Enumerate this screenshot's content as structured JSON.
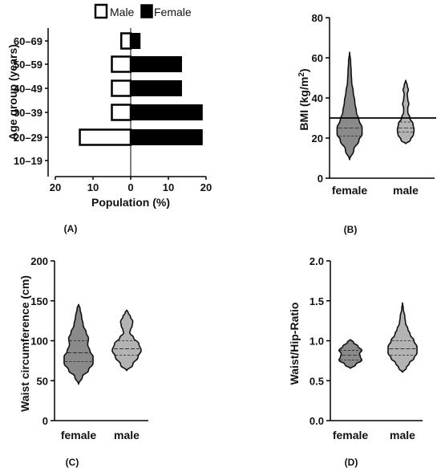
{
  "chart_data": [
    {
      "panel_label": "(A)",
      "type": "bar",
      "orientation": "horizontal-population-pyramid",
      "xlabel": "Population (%)",
      "ylabel": "Age group (years)",
      "xlim": [
        -20,
        20
      ],
      "x_ticks": [
        "20",
        "10",
        "0",
        "10",
        "20"
      ],
      "categories": [
        "60–69",
        "50–59",
        "40–49",
        "30–39",
        "20–29",
        "10–19"
      ],
      "series": [
        {
          "name": "Male",
          "values": [
            2.5,
            5,
            5,
            5,
            13.5,
            0
          ],
          "color": "#ffffff"
        },
        {
          "name": "Female",
          "values": [
            2.5,
            13.5,
            13.5,
            19,
            19,
            0
          ],
          "color": "#000000"
        }
      ],
      "legend_placement": "top"
    },
    {
      "panel_label": "(B)",
      "type": "violin",
      "ylabel": "BMI (kg/m²)",
      "ylim": [
        0,
        80
      ],
      "y_ticks": [
        "0",
        "20",
        "40",
        "60",
        "80"
      ],
      "categories": [
        "female",
        "male"
      ],
      "reference_line": 30,
      "violins": [
        {
          "min": 9,
          "max": 63,
          "profile": [
            [
              9,
              0
            ],
            [
              14,
              8
            ],
            [
              19,
              18
            ],
            [
              22,
              24
            ],
            [
              25,
              24
            ],
            [
              29,
              18
            ],
            [
              33,
              13
            ],
            [
              38,
              10
            ],
            [
              43,
              7
            ],
            [
              48,
              4
            ],
            [
              53,
              3
            ],
            [
              58,
              2
            ],
            [
              63,
              0
            ]
          ],
          "median": 25,
          "q1": 21,
          "q3": 30,
          "color": "#8a8a8a"
        },
        {
          "min": 17,
          "max": 49,
          "profile": [
            [
              17,
              0
            ],
            [
              19,
              9
            ],
            [
              22,
              15
            ],
            [
              24,
              16
            ],
            [
              27,
              14
            ],
            [
              30,
              8
            ],
            [
              33,
              4
            ],
            [
              35,
              4
            ],
            [
              37,
              6
            ],
            [
              39,
              4
            ],
            [
              42,
              3
            ],
            [
              44,
              5
            ],
            [
              46,
              3
            ],
            [
              49,
              0
            ]
          ],
          "median": 25,
          "q1": 23,
          "q3": 28,
          "color": "#b3b3b3"
        }
      ]
    },
    {
      "panel_label": "(C)",
      "type": "violin",
      "ylabel": "Waist circumference (cm)",
      "ylim": [
        0,
        200
      ],
      "y_ticks": [
        "0",
        "50",
        "100",
        "150",
        "200"
      ],
      "categories": [
        "female",
        "male"
      ],
      "violins": [
        {
          "min": 45,
          "max": 146,
          "profile": [
            [
              45,
              0
            ],
            [
              55,
              5
            ],
            [
              63,
              13
            ],
            [
              72,
              19
            ],
            [
              80,
              19
            ],
            [
              87,
              15
            ],
            [
              95,
              12
            ],
            [
              103,
              13
            ],
            [
              110,
              10
            ],
            [
              120,
              6
            ],
            [
              130,
              4
            ],
            [
              140,
              2
            ],
            [
              146,
              0
            ]
          ],
          "median": 85,
          "q1": 74,
          "q3": 100,
          "color": "#8a8a8a"
        },
        {
          "min": 62,
          "max": 139,
          "profile": [
            [
              62,
              0
            ],
            [
              70,
              8
            ],
            [
              80,
              15
            ],
            [
              88,
              19
            ],
            [
              96,
              16
            ],
            [
              104,
              9
            ],
            [
              110,
              4
            ],
            [
              114,
              5
            ],
            [
              118,
              7
            ],
            [
              124,
              8
            ],
            [
              130,
              5
            ],
            [
              135,
              2
            ],
            [
              139,
              0
            ]
          ],
          "median": 90,
          "q1": 82,
          "q3": 100,
          "color": "#b3b3b3"
        }
      ]
    },
    {
      "panel_label": "(D)",
      "type": "violin",
      "ylabel": "Waist/Hip-Ratio",
      "ylim": [
        0,
        2.0
      ],
      "y_ticks": [
        "0.0",
        "0.5",
        "1.0",
        "1.5",
        "2.0"
      ],
      "categories": [
        "female",
        "male"
      ],
      "violins": [
        {
          "min": 0.65,
          "max": 1.02,
          "profile": [
            [
              0.65,
              0
            ],
            [
              0.7,
              7
            ],
            [
              0.76,
              15
            ],
            [
              0.8,
              13
            ],
            [
              0.84,
              12
            ],
            [
              0.88,
              15
            ],
            [
              0.93,
              10
            ],
            [
              0.98,
              4
            ],
            [
              1.02,
              0
            ]
          ],
          "median": 0.82,
          "q1": 0.76,
          "q3": 0.88,
          "color": "#8a8a8a"
        },
        {
          "min": 0.6,
          "max": 1.48,
          "profile": [
            [
              0.6,
              0
            ],
            [
              0.66,
              5
            ],
            [
              0.72,
              9
            ],
            [
              0.78,
              15
            ],
            [
              0.85,
              19
            ],
            [
              0.92,
              19
            ],
            [
              1.0,
              15
            ],
            [
              1.08,
              10
            ],
            [
              1.15,
              7
            ],
            [
              1.22,
              4
            ],
            [
              1.3,
              3
            ],
            [
              1.4,
              1
            ],
            [
              1.48,
              0
            ]
          ],
          "median": 0.9,
          "q1": 0.82,
          "q3": 1.0,
          "color": "#b3b3b3"
        }
      ]
    }
  ]
}
